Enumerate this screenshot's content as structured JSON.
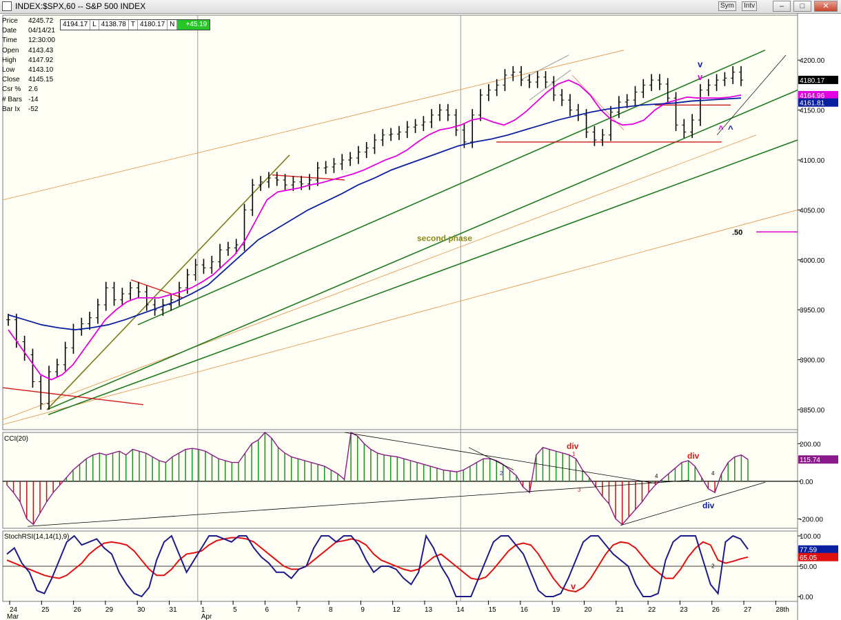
{
  "window": {
    "title": "INDEX:$SPX,60 -- S&P 500 INDEX",
    "sym_button": "Sym",
    "intv_button": "Intv"
  },
  "info_panel": [
    {
      "label": "Price",
      "value": "4245.72"
    },
    {
      "label": "Date",
      "value": "04/14/21"
    },
    {
      "label": "Time",
      "value": "12:30:00"
    },
    {
      "label": "Open",
      "value": "4143.43"
    },
    {
      "label": "High",
      "value": "4147.92"
    },
    {
      "label": "Low",
      "value": "4143.10"
    },
    {
      "label": "Close",
      "value": "4145.15"
    },
    {
      "label": "Csr %",
      "value": "2.6"
    },
    {
      "label": "# Bars",
      "value": "-14"
    },
    {
      "label": "Bar Ix",
      "value": "-52"
    }
  ],
  "last_bar": {
    "h": "4194.17",
    "h_tag": "L",
    "l": "4138.78",
    "l_tag": "T",
    "c": "4180.17",
    "c_tag": "N",
    "chg": "+45.19"
  },
  "colors": {
    "background": "#fffef4",
    "price_bar": "#000000",
    "ma_fast": "#e000e0",
    "ma_slow": "#0a1f9f",
    "channel_green": "#1f7a1f",
    "orange_line": "#e0923f",
    "red_line": "#d21a1a",
    "olive_line": "#7a7a16",
    "cci_up": "#1f8f1f",
    "cci_down": "#c01010",
    "stoch_k": "#1a1a8a",
    "stoch_d": "#e01010"
  },
  "chart_data": [
    {
      "type": "ohlc",
      "panel": "price",
      "ylim": [
        3830,
        4245
      ],
      "yticks": [
        3850,
        3900,
        3950,
        4000,
        4050,
        4100,
        4150,
        4200
      ],
      "ytick_labels": [
        "3850.00",
        "3900.00",
        "3950.00",
        "4000.00",
        "4050.00",
        "4100.00",
        "4150.00",
        "4200.00"
      ],
      "price_tags": {
        "last": "4180.17",
        "ma_fast": "4164.96",
        "ma_slow": "4161.81"
      },
      "x_labels": [
        "24",
        "25",
        "26",
        "29",
        "30",
        "31",
        "1",
        "5",
        "6",
        "7",
        "8",
        "9",
        "12",
        "13",
        "14",
        "15",
        "16",
        "19",
        "20",
        "21",
        "22",
        "23",
        "26",
        "27",
        "28th"
      ],
      "month_labels": [
        "Mar",
        "Apr"
      ],
      "series": [
        {
          "name": "close",
          "values": [
            3940,
            3918,
            3905,
            3878,
            3856,
            3888,
            3895,
            3912,
            3930,
            3936,
            3942,
            3955,
            3972,
            3960,
            3966,
            3972,
            3968,
            3955,
            3950,
            3955,
            3960,
            3972,
            3985,
            3995,
            3992,
            3998,
            4010,
            4012,
            4015,
            4050,
            4075,
            4078,
            4082,
            4080,
            4075,
            4078,
            4076,
            4080,
            4092,
            4093,
            4096,
            4100,
            4102,
            4108,
            4112,
            4120,
            4125,
            4126,
            4128,
            4133,
            4135,
            4138,
            4145,
            4150,
            4145,
            4130,
            4118,
            4145,
            4165,
            4170,
            4175,
            4185,
            4188,
            4180,
            4178,
            4183,
            4178,
            4165,
            4160,
            4150,
            4145,
            4128,
            4120,
            4125,
            4148,
            4158,
            4160,
            4168,
            4175,
            4180,
            4176,
            4162,
            4135,
            4128,
            4140,
            4170,
            4175,
            4180,
            4182,
            4188,
            4180
          ]
        },
        {
          "name": "fast_ma",
          "values": [
            3930,
            3915,
            3900,
            3885,
            3880,
            3885,
            3895,
            3910,
            3925,
            3940,
            3950,
            3958,
            3962,
            3962,
            3962,
            3965,
            3968,
            3972,
            3978,
            3985,
            3995,
            4005,
            4020,
            4040,
            4060,
            4068,
            4070,
            4072,
            4075,
            4077,
            4080,
            4083,
            4086,
            4090,
            4095,
            4100,
            4104,
            4110,
            4118,
            4125,
            4130,
            4132,
            4135,
            4140,
            4142,
            4138,
            4135,
            4140,
            4148,
            4158,
            4168,
            4176,
            4180,
            4175,
            4165,
            4150,
            4140,
            4135,
            4136,
            4140,
            4150,
            4157,
            4160,
            4163,
            4162,
            4162,
            4162,
            4163,
            4165
          ]
        },
        {
          "name": "slow_ma",
          "values": [
            3945,
            3940,
            3935,
            3932,
            3930,
            3932,
            3935,
            3940,
            3946,
            3952,
            3958,
            3966,
            3975,
            3990,
            4005,
            4020,
            4030,
            4040,
            4050,
            4058,
            4066,
            4075,
            4082,
            4090,
            4096,
            4102,
            4108,
            4114,
            4118,
            4121,
            4125,
            4130,
            4135,
            4140,
            4144,
            4148,
            4151,
            4153,
            4155,
            4156,
            4157,
            4159,
            4160,
            4161,
            4162
          ]
        }
      ],
      "annotations": [
        "second phase",
        ".50",
        "v",
        "v",
        "^",
        "^"
      ]
    },
    {
      "type": "bar",
      "panel": "cci",
      "title": "CCI(20)",
      "ylim": [
        -250,
        260
      ],
      "yticks": [
        -200,
        0,
        200
      ],
      "ytick_labels": [
        "-200.00",
        "0.00",
        "200.00"
      ],
      "last_value": "115.74",
      "values": [
        -20,
        -60,
        -110,
        -200,
        -230,
        -170,
        -110,
        -60,
        -20,
        20,
        60,
        90,
        120,
        140,
        150,
        140,
        150,
        160,
        140,
        170,
        160,
        150,
        130,
        110,
        100,
        130,
        150,
        170,
        175,
        170,
        160,
        140,
        120,
        110,
        100,
        100,
        150,
        200,
        220,
        260,
        230,
        180,
        150,
        130,
        120,
        110,
        100,
        90,
        80,
        60,
        40,
        10,
        260,
        240,
        200,
        170,
        150,
        140,
        135,
        130,
        120,
        110,
        100,
        90,
        80,
        70,
        60,
        55,
        50,
        60,
        80,
        100,
        120,
        120,
        110,
        90,
        60,
        30,
        -30,
        -60,
        140,
        180,
        170,
        160,
        150,
        140,
        120,
        60,
        20,
        -30,
        -80,
        -120,
        -200,
        -230,
        -190,
        -150,
        -110,
        -60,
        -20,
        10,
        40,
        70,
        100,
        110,
        80,
        20,
        -40,
        -60,
        40,
        100,
        130,
        140,
        116
      ],
      "annotations": [
        "div",
        "1",
        "div",
        "4",
        "div",
        "2",
        "3",
        "4"
      ]
    },
    {
      "type": "line",
      "panel": "stochrsi",
      "title": "StochRSI(14,14(1),9)",
      "ylim": [
        -8,
        108
      ],
      "yticks": [
        0,
        50,
        100
      ],
      "ytick_labels": [
        "0.00",
        "50.00",
        "100.00"
      ],
      "last_k": "77.59",
      "last_d": "65.05",
      "series": [
        {
          "name": "k",
          "values": [
            70,
            80,
            55,
            40,
            10,
            5,
            30,
            60,
            90,
            100,
            85,
            90,
            95,
            80,
            70,
            40,
            20,
            5,
            0,
            15,
            60,
            90,
            100,
            70,
            40,
            60,
            80,
            100,
            100,
            95,
            90,
            100,
            100,
            80,
            65,
            55,
            40,
            40,
            30,
            45,
            50,
            80,
            100,
            100,
            90,
            100,
            100,
            85,
            60,
            40,
            50,
            50,
            45,
            30,
            20,
            40,
            100,
            80,
            50,
            30,
            0,
            0,
            0,
            30,
            60,
            90,
            100,
            100,
            85,
            70,
            40,
            10,
            0,
            0,
            5,
            30,
            60,
            90,
            100,
            100,
            85,
            70,
            60,
            50,
            20,
            0,
            0,
            5,
            60,
            90,
            100,
            100,
            100,
            60,
            20,
            5,
            90,
            100,
            95,
            78
          ]
        },
        {
          "name": "d",
          "values": [
            60,
            55,
            50,
            45,
            40,
            35,
            32,
            30,
            35,
            45,
            55,
            70,
            80,
            88,
            90,
            88,
            85,
            75,
            60,
            45,
            35,
            35,
            45,
            60,
            70,
            72,
            75,
            85,
            92,
            95,
            97,
            97,
            95,
            90,
            80,
            70,
            60,
            50,
            45,
            45,
            50,
            60,
            70,
            80,
            90,
            92,
            95,
            92,
            85,
            70,
            60,
            55,
            50,
            45,
            42,
            45,
            55,
            65,
            70,
            60,
            50,
            40,
            30,
            28,
            32,
            45,
            60,
            75,
            85,
            88,
            85,
            70,
            50,
            30,
            15,
            10,
            8,
            15,
            30,
            50,
            70,
            85,
            90,
            88,
            80,
            65,
            50,
            40,
            30,
            30,
            45,
            65,
            80,
            90,
            85,
            60,
            55,
            58,
            62,
            65
          ]
        }
      ],
      "annotations": [
        "v",
        "2"
      ]
    }
  ]
}
